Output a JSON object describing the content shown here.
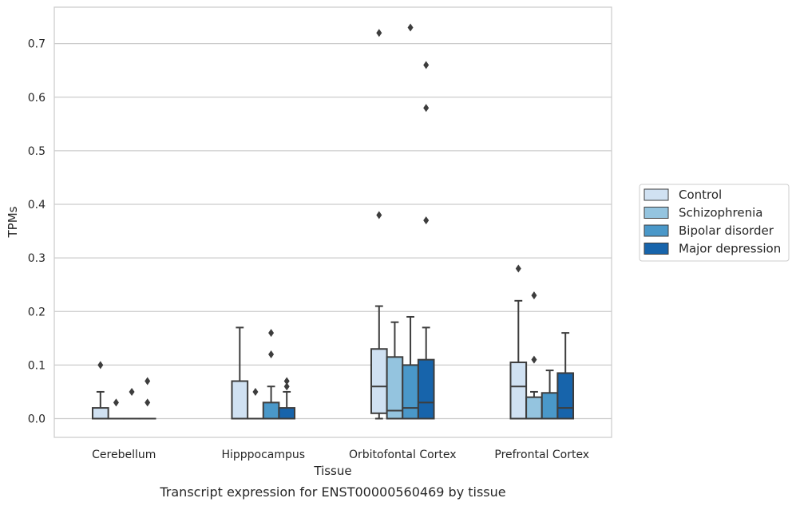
{
  "caption": "Transcript expression for ENST00000560469 by tissue",
  "chart_data": {
    "type": "box",
    "xlabel": "Tissue",
    "ylabel": "TPMs",
    "ylim": [
      -0.035,
      0.768
    ],
    "yticks": [
      "0.0",
      "0.1",
      "0.2",
      "0.3",
      "0.4",
      "0.5",
      "0.6",
      "0.7"
    ],
    "grid": "horizontal",
    "legend_position": "right",
    "categories": [
      "Cerebellum",
      "Hipppocampus",
      "Orbitofontal Cortex",
      "Prefrontal Cortex"
    ],
    "series": [
      {
        "name": "Control",
        "color": "#d0e1f2",
        "boxes": [
          {
            "q1": 0.0,
            "median": 0.0,
            "q3": 0.02,
            "whisker_low": 0.0,
            "whisker_high": 0.05,
            "outliers": [
              0.1
            ]
          },
          {
            "q1": 0.0,
            "median": 0.0,
            "q3": 0.07,
            "whisker_low": 0.0,
            "whisker_high": 0.17,
            "outliers": []
          },
          {
            "q1": 0.01,
            "median": 0.06,
            "q3": 0.13,
            "whisker_low": 0.0,
            "whisker_high": 0.21,
            "outliers": [
              0.38,
              0.72
            ]
          },
          {
            "q1": 0.0,
            "median": 0.06,
            "q3": 0.105,
            "whisker_low": 0.0,
            "whisker_high": 0.22,
            "outliers": [
              0.28
            ]
          }
        ]
      },
      {
        "name": "Schizophrenia",
        "color": "#94c4df",
        "boxes": [
          {
            "q1": 0.0,
            "median": 0.0,
            "q3": 0.0,
            "whisker_low": 0.0,
            "whisker_high": 0.0,
            "outliers": [
              0.03
            ]
          },
          {
            "q1": 0.0,
            "median": 0.0,
            "q3": 0.0,
            "whisker_low": 0.0,
            "whisker_high": 0.0,
            "outliers": [
              0.05
            ]
          },
          {
            "q1": 0.0,
            "median": 0.015,
            "q3": 0.115,
            "whisker_low": 0.0,
            "whisker_high": 0.18,
            "outliers": []
          },
          {
            "q1": 0.0,
            "median": 0.0,
            "q3": 0.04,
            "whisker_low": 0.0,
            "whisker_high": 0.05,
            "outliers": [
              0.11,
              0.23
            ]
          }
        ]
      },
      {
        "name": "Bipolar disorder",
        "color": "#4a98c9",
        "boxes": [
          {
            "q1": 0.0,
            "median": 0.0,
            "q3": 0.0,
            "whisker_low": 0.0,
            "whisker_high": 0.0,
            "outliers": [
              0.05
            ]
          },
          {
            "q1": 0.0,
            "median": 0.0,
            "q3": 0.03,
            "whisker_low": 0.0,
            "whisker_high": 0.06,
            "outliers": [
              0.12,
              0.16
            ]
          },
          {
            "q1": 0.0,
            "median": 0.02,
            "q3": 0.1,
            "whisker_low": 0.0,
            "whisker_high": 0.19,
            "outliers": [
              0.73
            ]
          },
          {
            "q1": 0.0,
            "median": 0.0,
            "q3": 0.048,
            "whisker_low": 0.0,
            "whisker_high": 0.09,
            "outliers": []
          }
        ]
      },
      {
        "name": "Major depression",
        "color": "#1764ab",
        "boxes": [
          {
            "q1": 0.0,
            "median": 0.0,
            "q3": 0.0,
            "whisker_low": 0.0,
            "whisker_high": 0.0,
            "outliers": [
              0.03,
              0.07
            ]
          },
          {
            "q1": 0.0,
            "median": 0.0,
            "q3": 0.02,
            "whisker_low": 0.0,
            "whisker_high": 0.05,
            "outliers": [
              0.06,
              0.07
            ]
          },
          {
            "q1": 0.0,
            "median": 0.03,
            "q3": 0.11,
            "whisker_low": 0.0,
            "whisker_high": 0.17,
            "outliers": [
              0.37,
              0.58,
              0.66
            ]
          },
          {
            "q1": 0.0,
            "median": 0.02,
            "q3": 0.085,
            "whisker_low": 0.0,
            "whisker_high": 0.16,
            "outliers": []
          }
        ]
      }
    ]
  }
}
